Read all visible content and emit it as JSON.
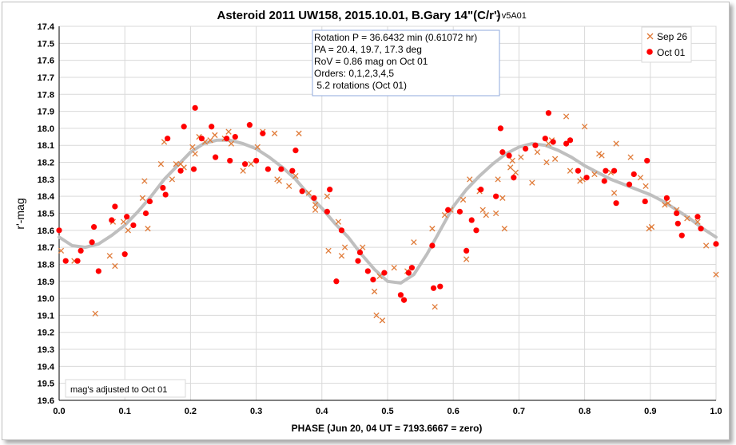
{
  "chart_data": {
    "type": "scatter",
    "title": "Asteroid 2011 UW158, 2015.10.01, B.Gary 14\"(C/r')",
    "title_suffix": "- v5A01",
    "xlabel": "PHASE (Jun 20, 04 UT = 7193.6667 = zero)",
    "ylabel": "r'-mag",
    "xlim": [
      0.0,
      1.0
    ],
    "ylim": [
      17.4,
      19.6
    ],
    "y_inverted": true,
    "grid": true,
    "legend_position": "top-right",
    "x_ticks": [
      "0.0",
      "0.1",
      "0.2",
      "0.3",
      "0.4",
      "0.5",
      "0.6",
      "0.7",
      "0.8",
      "0.9",
      "1.0"
    ],
    "y_ticks": [
      "17.4",
      "17.5",
      "17.6",
      "17.7",
      "17.8",
      "17.9",
      "18.0",
      "18.1",
      "18.2",
      "18.3",
      "18.4",
      "18.5",
      "18.6",
      "18.7",
      "18.8",
      "18.9",
      "19.0",
      "19.1",
      "19.2",
      "19.3",
      "19.4",
      "19.5",
      "19.6"
    ],
    "info_box": [
      "Rotation P = 36.6432 min (0.61072 hr)",
      "PA =  20.4, 19.7, 17.3 deg",
      "RoV = 0.86 mag on Oct 01",
      "Orders: 0,1,2,3,4,5",
      " 5.2 rotations (Oct 01)"
    ],
    "note": "mag's adjusted to Oct 01",
    "series": [
      {
        "name": "Sep 26",
        "marker": "x",
        "color": "#e07b39",
        "points": [
          [
            0.003,
            18.72
          ],
          [
            0.023,
            18.78
          ],
          [
            0.055,
            19.09
          ],
          [
            0.077,
            18.75
          ],
          [
            0.082,
            18.55
          ],
          [
            0.085,
            18.81
          ],
          [
            0.098,
            18.55
          ],
          [
            0.105,
            18.6
          ],
          [
            0.127,
            18.41
          ],
          [
            0.13,
            18.31
          ],
          [
            0.135,
            18.59
          ],
          [
            0.155,
            18.21
          ],
          [
            0.16,
            18.08
          ],
          [
            0.172,
            18.3
          ],
          [
            0.178,
            18.21
          ],
          [
            0.185,
            18.21
          ],
          [
            0.19,
            18.23
          ],
          [
            0.203,
            18.11
          ],
          [
            0.207,
            18.15
          ],
          [
            0.213,
            18.05
          ],
          [
            0.222,
            18.08
          ],
          [
            0.23,
            18.07
          ],
          [
            0.237,
            18.04
          ],
          [
            0.252,
            18.06
          ],
          [
            0.258,
            18.02
          ],
          [
            0.262,
            18.09
          ],
          [
            0.28,
            18.25
          ],
          [
            0.292,
            18.21
          ],
          [
            0.302,
            18.11
          ],
          [
            0.31,
            18.02
          ],
          [
            0.328,
            18.03
          ],
          [
            0.332,
            18.3
          ],
          [
            0.335,
            18.31
          ],
          [
            0.35,
            18.34
          ],
          [
            0.36,
            18.28
          ],
          [
            0.365,
            18.03
          ],
          [
            0.38,
            18.38
          ],
          [
            0.39,
            18.45
          ],
          [
            0.39,
            18.48
          ],
          [
            0.408,
            18.4
          ],
          [
            0.41,
            18.72
          ],
          [
            0.425,
            18.55
          ],
          [
            0.43,
            18.75
          ],
          [
            0.435,
            18.7
          ],
          [
            0.462,
            18.7
          ],
          [
            0.48,
            18.96
          ],
          [
            0.483,
            19.1
          ],
          [
            0.488,
            18.87
          ],
          [
            0.492,
            19.13
          ],
          [
            0.51,
            18.82
          ],
          [
            0.53,
            18.84
          ],
          [
            0.54,
            18.67
          ],
          [
            0.568,
            18.59
          ],
          [
            0.572,
            19.05
          ],
          [
            0.587,
            18.51
          ],
          [
            0.596,
            18.48
          ],
          [
            0.615,
            18.42
          ],
          [
            0.62,
            18.77
          ],
          [
            0.625,
            18.3
          ],
          [
            0.64,
            18.37
          ],
          [
            0.645,
            18.48
          ],
          [
            0.65,
            18.51
          ],
          [
            0.665,
            18.5
          ],
          [
            0.668,
            18.3
          ],
          [
            0.675,
            18.41
          ],
          [
            0.678,
            18.59
          ],
          [
            0.687,
            18.23
          ],
          [
            0.69,
            18.19
          ],
          [
            0.695,
            18.26
          ],
          [
            0.703,
            18.17
          ],
          [
            0.72,
            18.32
          ],
          [
            0.728,
            18.14
          ],
          [
            0.742,
            18.2
          ],
          [
            0.745,
            18.09
          ],
          [
            0.75,
            18.07
          ],
          [
            0.755,
            18.18
          ],
          [
            0.772,
            17.93
          ],
          [
            0.778,
            18.25
          ],
          [
            0.793,
            18.31
          ],
          [
            0.797,
            18.3
          ],
          [
            0.8,
            17.99
          ],
          [
            0.815,
            18.27
          ],
          [
            0.822,
            18.15
          ],
          [
            0.826,
            18.16
          ],
          [
            0.84,
            18.26
          ],
          [
            0.845,
            18.38
          ],
          [
            0.848,
            18.09
          ],
          [
            0.87,
            18.17
          ],
          [
            0.885,
            18.29
          ],
          [
            0.893,
            18.34
          ],
          [
            0.898,
            18.59
          ],
          [
            0.902,
            18.58
          ],
          [
            0.922,
            18.45
          ],
          [
            0.927,
            18.44
          ],
          [
            0.94,
            18.48
          ],
          [
            0.956,
            18.53
          ],
          [
            0.972,
            18.55
          ],
          [
            0.985,
            18.69
          ],
          [
            1.0,
            18.86
          ]
        ]
      },
      {
        "name": "Oct 01",
        "marker": "circle",
        "color": "#ff0000",
        "points": [
          [
            0.0,
            18.6
          ],
          [
            0.01,
            18.78
          ],
          [
            0.028,
            18.78
          ],
          [
            0.033,
            18.72
          ],
          [
            0.05,
            18.67
          ],
          [
            0.053,
            18.58
          ],
          [
            0.06,
            18.84
          ],
          [
            0.08,
            18.54
          ],
          [
            0.085,
            18.46
          ],
          [
            0.1,
            18.74
          ],
          [
            0.103,
            18.52
          ],
          [
            0.113,
            18.57
          ],
          [
            0.132,
            18.5
          ],
          [
            0.138,
            18.43
          ],
          [
            0.158,
            18.35
          ],
          [
            0.162,
            18.39
          ],
          [
            0.165,
            18.06
          ],
          [
            0.185,
            18.25
          ],
          [
            0.19,
            17.99
          ],
          [
            0.205,
            18.24
          ],
          [
            0.207,
            17.88
          ],
          [
            0.217,
            18.06
          ],
          [
            0.232,
            17.99
          ],
          [
            0.238,
            18.17
          ],
          [
            0.255,
            18.06
          ],
          [
            0.26,
            18.19
          ],
          [
            0.268,
            18.05
          ],
          [
            0.283,
            18.21
          ],
          [
            0.29,
            17.98
          ],
          [
            0.3,
            18.19
          ],
          [
            0.31,
            18.03
          ],
          [
            0.318,
            18.24
          ],
          [
            0.338,
            18.24
          ],
          [
            0.355,
            18.25
          ],
          [
            0.36,
            18.13
          ],
          [
            0.37,
            18.37
          ],
          [
            0.388,
            18.41
          ],
          [
            0.408,
            18.49
          ],
          [
            0.412,
            18.36
          ],
          [
            0.422,
            18.9
          ],
          [
            0.43,
            18.6
          ],
          [
            0.455,
            18.78
          ],
          [
            0.458,
            18.73
          ],
          [
            0.47,
            18.84
          ],
          [
            0.478,
            18.89
          ],
          [
            0.495,
            18.85
          ],
          [
            0.52,
            18.98
          ],
          [
            0.525,
            19.01
          ],
          [
            0.532,
            18.85
          ],
          [
            0.537,
            18.82
          ],
          [
            0.568,
            18.69
          ],
          [
            0.57,
            18.94
          ],
          [
            0.58,
            18.93
          ],
          [
            0.592,
            18.48
          ],
          [
            0.61,
            18.49
          ],
          [
            0.62,
            18.72
          ],
          [
            0.628,
            18.54
          ],
          [
            0.635,
            18.6
          ],
          [
            0.642,
            18.36
          ],
          [
            0.665,
            18.4
          ],
          [
            0.672,
            18.0
          ],
          [
            0.675,
            18.14
          ],
          [
            0.685,
            18.16
          ],
          [
            0.692,
            18.29
          ],
          [
            0.71,
            18.12
          ],
          [
            0.725,
            18.1
          ],
          [
            0.74,
            18.06
          ],
          [
            0.745,
            17.91
          ],
          [
            0.752,
            18.08
          ],
          [
            0.772,
            18.09
          ],
          [
            0.778,
            18.07
          ],
          [
            0.79,
            18.25
          ],
          [
            0.803,
            18.29
          ],
          [
            0.83,
            18.31
          ],
          [
            0.832,
            18.25
          ],
          [
            0.845,
            18.25
          ],
          [
            0.848,
            18.44
          ],
          [
            0.868,
            18.33
          ],
          [
            0.875,
            18.27
          ],
          [
            0.892,
            18.43
          ],
          [
            0.895,
            18.19
          ],
          [
            0.925,
            18.41
          ],
          [
            0.94,
            18.5
          ],
          [
            0.942,
            18.56
          ],
          [
            0.948,
            18.63
          ],
          [
            0.972,
            18.52
          ],
          [
            0.977,
            18.59
          ],
          [
            1.0,
            18.68
          ]
        ]
      }
    ],
    "fit_curve": {
      "color": "#bfbfbf",
      "points": [
        [
          0.0,
          18.64
        ],
        [
          0.02,
          18.69
        ],
        [
          0.04,
          18.7
        ],
        [
          0.06,
          18.68
        ],
        [
          0.08,
          18.63
        ],
        [
          0.1,
          18.57
        ],
        [
          0.12,
          18.49
        ],
        [
          0.14,
          18.4
        ],
        [
          0.16,
          18.3
        ],
        [
          0.18,
          18.22
        ],
        [
          0.2,
          18.14
        ],
        [
          0.22,
          18.09
        ],
        [
          0.24,
          18.07
        ],
        [
          0.26,
          18.07
        ],
        [
          0.28,
          18.09
        ],
        [
          0.3,
          18.12
        ],
        [
          0.32,
          18.17
        ],
        [
          0.34,
          18.23
        ],
        [
          0.36,
          18.3
        ],
        [
          0.38,
          18.39
        ],
        [
          0.4,
          18.47
        ],
        [
          0.42,
          18.56
        ],
        [
          0.44,
          18.64
        ],
        [
          0.46,
          18.74
        ],
        [
          0.48,
          18.83
        ],
        [
          0.5,
          18.9
        ],
        [
          0.52,
          18.91
        ],
        [
          0.54,
          18.86
        ],
        [
          0.56,
          18.74
        ],
        [
          0.58,
          18.6
        ],
        [
          0.6,
          18.46
        ],
        [
          0.62,
          18.36
        ],
        [
          0.64,
          18.28
        ],
        [
          0.66,
          18.21
        ],
        [
          0.68,
          18.15
        ],
        [
          0.7,
          18.11
        ],
        [
          0.72,
          18.09
        ],
        [
          0.74,
          18.1
        ],
        [
          0.76,
          18.13
        ],
        [
          0.78,
          18.17
        ],
        [
          0.8,
          18.22
        ],
        [
          0.82,
          18.26
        ],
        [
          0.84,
          18.3
        ],
        [
          0.86,
          18.33
        ],
        [
          0.88,
          18.36
        ],
        [
          0.9,
          18.39
        ],
        [
          0.92,
          18.43
        ],
        [
          0.94,
          18.48
        ],
        [
          0.96,
          18.53
        ],
        [
          0.98,
          18.59
        ],
        [
          1.0,
          18.64
        ]
      ]
    }
  }
}
